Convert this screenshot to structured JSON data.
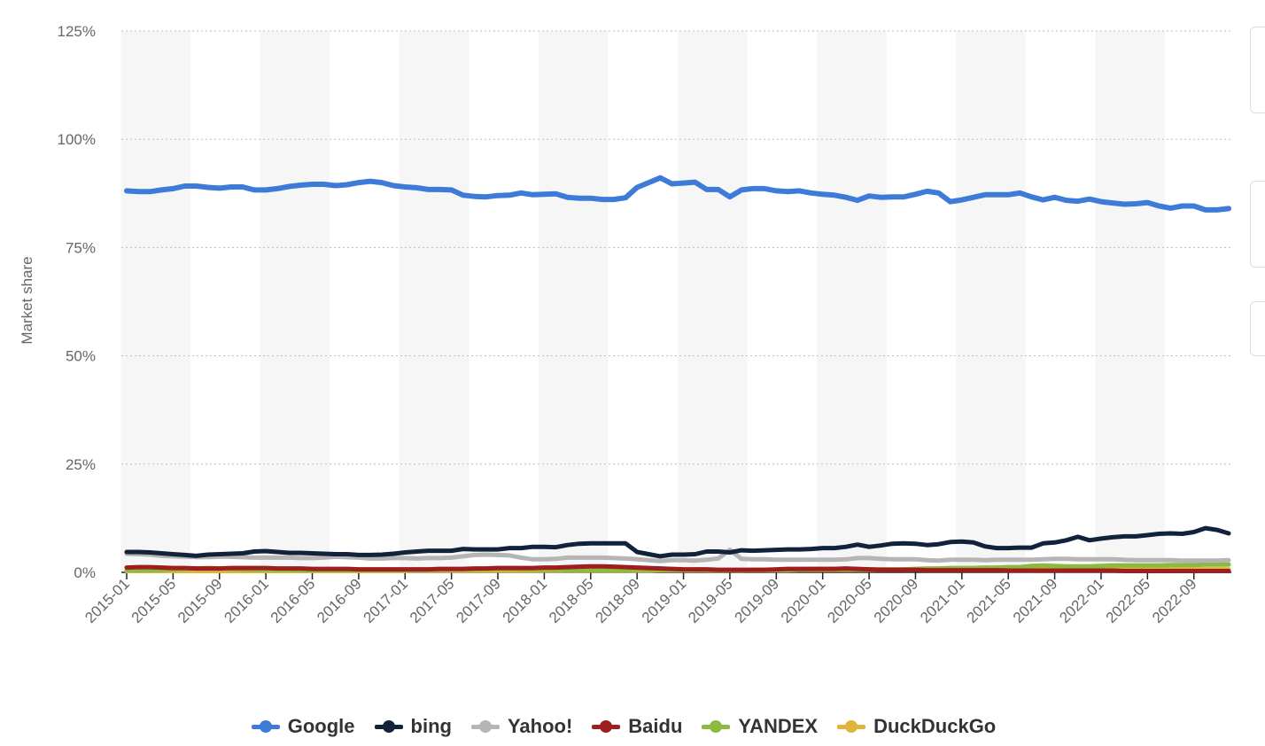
{
  "chart_data": {
    "type": "line",
    "title": "",
    "xlabel": "",
    "ylabel": "Market share",
    "ylim": [
      0,
      125
    ],
    "yticks": [
      0,
      25,
      50,
      75,
      100,
      125
    ],
    "ytick_labels": [
      "0%",
      "25%",
      "50%",
      "75%",
      "100%",
      "125%"
    ],
    "xtick_labels": [
      "2015-01",
      "2015-05",
      "2015-09",
      "2016-01",
      "2016-05",
      "2016-09",
      "2017-01",
      "2017-05",
      "2017-09",
      "2018-01",
      "2018-05",
      "2018-09",
      "2019-01",
      "2019-05",
      "2019-09",
      "2020-01",
      "2020-05",
      "2020-09",
      "2021-01",
      "2021-05",
      "2021-09",
      "2022-01",
      "2022-05",
      "2022-09"
    ],
    "x_start": "2015-01",
    "x_end": "2022-12",
    "grid": true,
    "legend_position": "bottom",
    "series": [
      {
        "name": "Google",
        "color": "#3e7bd9",
        "values": [
          88.1,
          87.9,
          87.9,
          88.3,
          88.6,
          89.2,
          89.2,
          88.9,
          88.7,
          89.0,
          89.0,
          88.3,
          88.3,
          88.6,
          89.1,
          89.4,
          89.6,
          89.6,
          89.3,
          89.5,
          90.0,
          90.3,
          90.0,
          89.3,
          89.0,
          88.8,
          88.4,
          88.4,
          88.3,
          87.1,
          86.8,
          86.7,
          87.0,
          87.1,
          87.6,
          87.2,
          87.3,
          87.4,
          86.6,
          86.4,
          86.4,
          86.1,
          86.1,
          86.5,
          88.9,
          90.0,
          91.1,
          89.7,
          89.9,
          90.1,
          88.4,
          88.4,
          86.7,
          88.3,
          88.6,
          88.6,
          88.1,
          87.9,
          88.1,
          87.6,
          87.3,
          87.1,
          86.6,
          85.9,
          86.9,
          86.6,
          86.7,
          86.7,
          87.3,
          88.0,
          87.6,
          85.6,
          86.0,
          86.6,
          87.2,
          87.2,
          87.2,
          87.6,
          86.7,
          86.0,
          86.6,
          85.9,
          85.7,
          86.2,
          85.6,
          85.3,
          85.0,
          85.1,
          85.4,
          84.6,
          84.1,
          84.6,
          84.6,
          83.7,
          83.7,
          84.0
        ],
        "line_width": 6
      },
      {
        "name": "bing",
        "color": "#12223a",
        "values": [
          4.7,
          4.7,
          4.6,
          4.4,
          4.2,
          4.0,
          3.8,
          4.1,
          4.2,
          4.3,
          4.4,
          4.8,
          4.9,
          4.7,
          4.5,
          4.5,
          4.4,
          4.3,
          4.2,
          4.2,
          4.0,
          4.0,
          4.1,
          4.3,
          4.6,
          4.8,
          5.0,
          5.0,
          5.0,
          5.4,
          5.3,
          5.3,
          5.3,
          5.6,
          5.6,
          5.9,
          5.9,
          5.8,
          6.3,
          6.6,
          6.7,
          6.7,
          6.7,
          6.7,
          4.7,
          4.2,
          3.7,
          4.1,
          4.1,
          4.2,
          4.8,
          4.8,
          4.6,
          5.1,
          5.0,
          5.1,
          5.2,
          5.3,
          5.3,
          5.4,
          5.6,
          5.6,
          5.9,
          6.4,
          5.9,
          6.2,
          6.6,
          6.7,
          6.6,
          6.3,
          6.5,
          7.0,
          7.1,
          6.9,
          6.0,
          5.6,
          5.6,
          5.7,
          5.7,
          6.7,
          6.9,
          7.4,
          8.2,
          7.4,
          7.8,
          8.1,
          8.3,
          8.3,
          8.6,
          8.9,
          9.0,
          8.9,
          9.3,
          10.2,
          9.8,
          9.0
        ]
      },
      {
        "name": "Yahoo!",
        "color": "#b5b5b5",
        "values": [
          4.3,
          4.2,
          4.1,
          3.8,
          3.7,
          3.6,
          3.5,
          3.5,
          3.6,
          3.6,
          3.5,
          3.4,
          3.4,
          3.4,
          3.4,
          3.3,
          3.3,
          3.4,
          3.6,
          3.5,
          3.4,
          3.2,
          3.2,
          3.3,
          3.3,
          3.2,
          3.3,
          3.3,
          3.4,
          3.7,
          4.0,
          4.1,
          4.0,
          3.9,
          3.4,
          3.0,
          3.0,
          3.1,
          3.4,
          3.4,
          3.4,
          3.4,
          3.3,
          3.2,
          3.0,
          2.8,
          2.6,
          2.8,
          2.8,
          2.7,
          2.9,
          3.2,
          5.2,
          3.1,
          3.0,
          3.0,
          2.9,
          2.9,
          2.9,
          2.9,
          2.9,
          2.9,
          3.0,
          3.3,
          3.3,
          3.1,
          3.0,
          3.0,
          3.0,
          2.8,
          2.7,
          2.9,
          2.9,
          2.9,
          2.8,
          2.9,
          2.9,
          2.9,
          2.9,
          3.0,
          3.1,
          3.1,
          3.0,
          3.0,
          3.0,
          3.0,
          2.9,
          2.8,
          2.8,
          2.8,
          2.8,
          2.7,
          2.7,
          2.7,
          2.7,
          2.8
        ]
      },
      {
        "name": "Baidu",
        "color": "#9e1e1e",
        "values": [
          1.1,
          1.2,
          1.2,
          1.1,
          1.0,
          1.0,
          0.9,
          0.9,
          0.9,
          1.0,
          1.0,
          1.0,
          1.0,
          0.9,
          0.9,
          0.9,
          0.8,
          0.8,
          0.8,
          0.8,
          0.7,
          0.7,
          0.7,
          0.7,
          0.7,
          0.7,
          0.7,
          0.8,
          0.8,
          0.8,
          0.9,
          0.9,
          1.0,
          1.0,
          1.0,
          1.0,
          1.1,
          1.1,
          1.2,
          1.3,
          1.4,
          1.4,
          1.3,
          1.2,
          1.1,
          1.0,
          0.9,
          0.8,
          0.7,
          0.7,
          0.7,
          0.6,
          0.6,
          0.6,
          0.6,
          0.6,
          0.7,
          0.8,
          0.8,
          0.8,
          0.8,
          0.8,
          0.9,
          0.8,
          0.7,
          0.6,
          0.6,
          0.6,
          0.6,
          0.5,
          0.5,
          0.5,
          0.5,
          0.5,
          0.5,
          0.5,
          0.4,
          0.4,
          0.4,
          0.4,
          0.4,
          0.4,
          0.4,
          0.4,
          0.4,
          0.4,
          0.3,
          0.3,
          0.3,
          0.3,
          0.3,
          0.3,
          0.3,
          0.3,
          0.3,
          0.3
        ]
      },
      {
        "name": "YANDEX",
        "color": "#8cba3f",
        "values": [
          0.5,
          0.5,
          0.5,
          0.6,
          0.7,
          0.8,
          0.9,
          1.0,
          0.9,
          0.8,
          0.7,
          0.6,
          0.6,
          0.6,
          0.6,
          0.5,
          0.5,
          0.5,
          0.5,
          0.5,
          0.5,
          0.5,
          0.5,
          0.5,
          0.5,
          0.5,
          0.6,
          0.6,
          0.7,
          0.7,
          0.7,
          0.8,
          0.8,
          0.8,
          0.7,
          0.7,
          0.6,
          0.6,
          0.5,
          0.5,
          0.5,
          0.5,
          0.5,
          0.5,
          0.6,
          0.6,
          0.6,
          0.6,
          0.6,
          0.6,
          0.5,
          0.5,
          0.5,
          0.5,
          0.6,
          0.6,
          0.6,
          0.6,
          0.7,
          0.8,
          0.8,
          0.8,
          0.8,
          0.7,
          0.7,
          0.7,
          0.7,
          0.7,
          0.8,
          0.9,
          0.9,
          1.0,
          1.0,
          1.0,
          1.1,
          1.1,
          1.2,
          1.2,
          1.5,
          1.6,
          1.5,
          1.4,
          1.4,
          1.4,
          1.5,
          1.6,
          1.6,
          1.6,
          1.6,
          1.6,
          1.7,
          1.7,
          1.7,
          1.8,
          1.8,
          1.8
        ]
      },
      {
        "name": "DuckDuckGo",
        "color": "#e0b43a",
        "values": [
          0.3,
          0.3,
          0.3,
          0.3,
          0.3,
          0.3,
          0.3,
          0.3,
          0.3,
          0.3,
          0.3,
          0.3,
          0.3,
          0.3,
          0.3,
          0.3,
          0.3,
          0.3,
          0.3,
          0.3,
          0.3,
          0.3,
          0.3,
          0.3,
          0.3,
          0.4,
          0.4,
          0.4,
          0.4,
          0.4,
          0.4,
          0.4,
          0.4,
          0.4,
          0.4,
          0.4,
          0.4,
          0.4,
          0.4,
          0.4,
          0.4,
          0.4,
          0.4,
          0.4,
          0.4,
          0.4,
          0.5,
          0.5,
          0.5,
          0.5,
          0.5,
          0.5,
          0.5,
          0.5,
          0.5,
          0.5,
          0.5,
          0.5,
          0.6,
          0.6,
          0.6,
          0.6,
          0.6,
          0.6,
          0.6,
          0.6,
          0.6,
          0.6,
          0.6,
          0.6,
          0.6,
          0.6,
          0.6,
          0.6,
          0.7,
          0.7,
          0.7,
          0.7,
          0.7,
          0.7,
          0.7,
          0.7,
          0.7,
          0.7,
          0.7,
          0.7,
          0.7,
          0.7,
          0.7,
          0.7,
          0.7,
          0.7,
          0.7,
          0.7,
          0.7,
          0.7
        ]
      }
    ]
  }
}
